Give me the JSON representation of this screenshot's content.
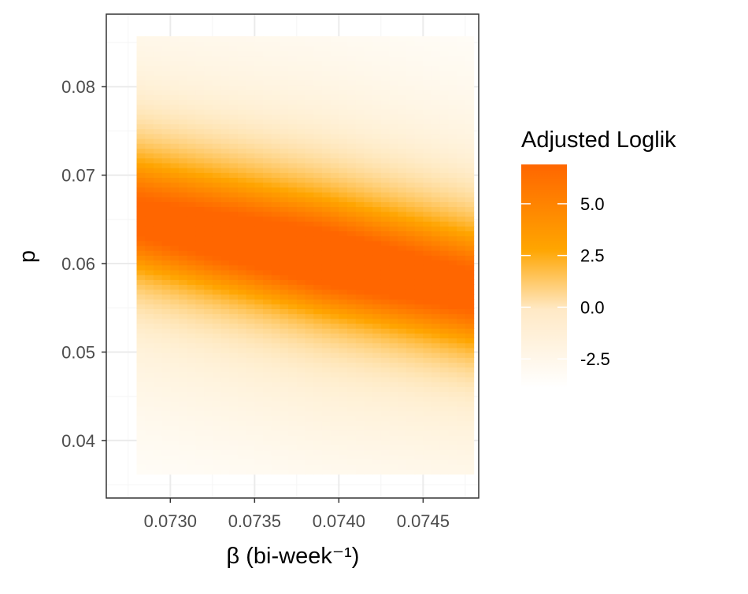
{
  "chart_data": {
    "type": "heatmap",
    "title": "",
    "xlabel": "β (bi-week⁻¹)",
    "ylabel": "p",
    "xlim": [
      0.07262,
      0.07483
    ],
    "ylim": [
      0.0335,
      0.0882
    ],
    "x_range": [
      0.0728,
      0.0748
    ],
    "y_range": [
      0.0362,
      0.0857
    ],
    "x_ticks": [
      0.073,
      0.0735,
      0.074,
      0.0745
    ],
    "x_tick_labels": [
      "0.0730",
      "0.0735",
      "0.0740",
      "0.0745"
    ],
    "y_ticks": [
      0.04,
      0.05,
      0.06,
      0.07,
      0.08
    ],
    "y_tick_labels": [
      "0.04",
      "0.05",
      "0.06",
      "0.07",
      "0.08"
    ],
    "grid": true,
    "ridge": {
      "description_points": [
        {
          "beta": 0.0728,
          "p": 0.0651
        },
        {
          "beta": 0.0739,
          "p": 0.0606
        },
        {
          "beta": 0.0748,
          "p": 0.0569
        }
      ]
    },
    "peak": {
      "beta": 0.0739,
      "p": 0.0606,
      "value": 6.9
    },
    "z_min": -3.9,
    "z_max": 6.9
  },
  "legend": {
    "title": "Adjusted Loglik",
    "position": "right",
    "breaks": [
      5.0,
      2.5,
      0.0,
      -2.5
    ],
    "break_labels": [
      "5.0",
      "2.5",
      "0.0",
      "-2.5"
    ],
    "colors": {
      "low": "#ffffff",
      "mid": "#ffa500",
      "high": "#ff6600"
    }
  },
  "colors": {
    "panel_border": "#333333",
    "grid_major": "#ebebeb",
    "grid_minor": "#f5f5f5"
  }
}
